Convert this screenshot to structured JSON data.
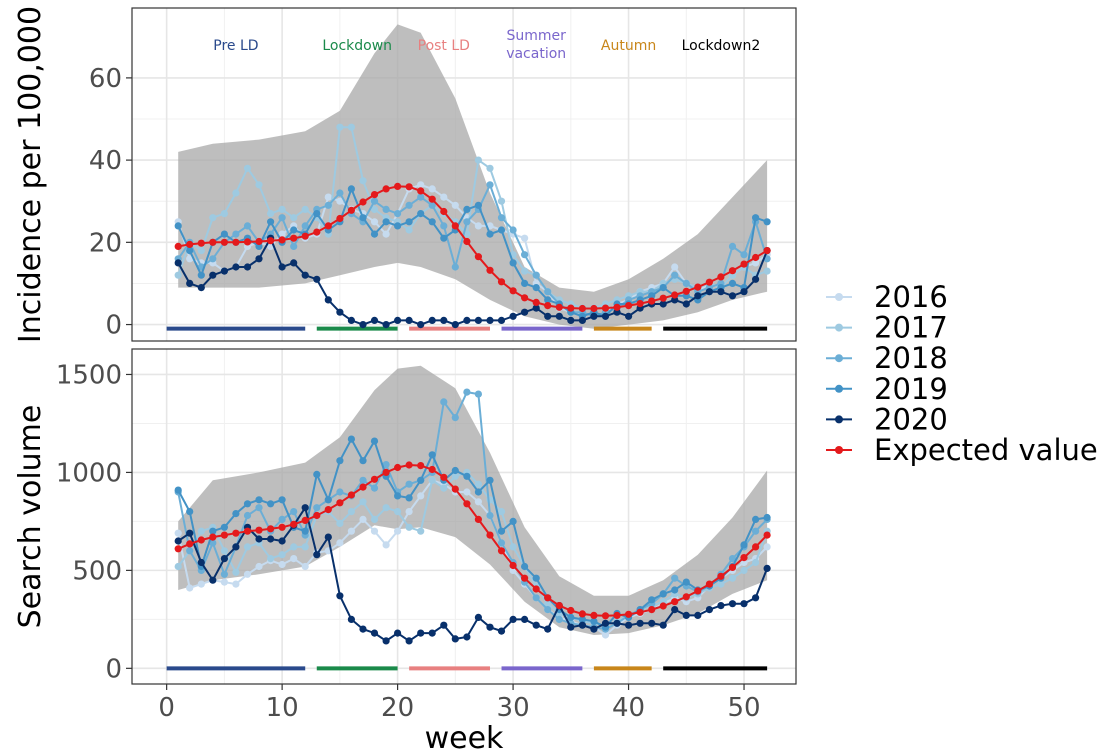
{
  "chart_data": {
    "type": "line",
    "xlabel": "week",
    "xlim": [
      -3,
      54.5
    ],
    "xticks": [
      0,
      10,
      20,
      30,
      40,
      50
    ],
    "legend": {
      "placement": "right",
      "entries": [
        {
          "label": "2016",
          "color": "#c6dbef"
        },
        {
          "label": "2017",
          "color": "#9ecae1"
        },
        {
          "label": "2018",
          "color": "#6baed6"
        },
        {
          "label": "2019",
          "color": "#4292c6"
        },
        {
          "label": "2020",
          "color": "#08306b"
        },
        {
          "label": "Expected value",
          "color": "#e41a1c"
        }
      ]
    },
    "periods": [
      {
        "label": "Pre LD",
        "start": 0,
        "end": 12,
        "color": "#2a4a8c",
        "label_x": 6
      },
      {
        "label": "Lockdown",
        "start": 13,
        "end": 20,
        "color": "#1a8a4a",
        "label_x": 16.5
      },
      {
        "label": "Post LD",
        "start": 21,
        "end": 28,
        "color": "#e88080",
        "label_x": 24
      },
      {
        "label": "Summer\nvacation",
        "start": 29,
        "end": 36,
        "color": "#7a66cc",
        "label_x": 32
      },
      {
        "label": "Autumn",
        "start": 37,
        "end": 42,
        "color": "#c8861a",
        "label_x": 40
      },
      {
        "label": "Lockdown2",
        "start": 43,
        "end": 52,
        "color": "#000000",
        "label_x": 48
      }
    ],
    "panels": [
      {
        "ylabel": "Incidence per 100,000",
        "ylim": [
          -4,
          77
        ],
        "yticks": [
          0,
          20,
          40,
          60
        ],
        "band_y": -1,
        "ribbon": {
          "x": [
            1,
            4,
            8,
            12,
            15,
            18,
            20,
            22,
            25,
            28,
            31,
            34,
            37,
            40,
            43,
            46,
            49,
            52
          ],
          "upper": [
            42,
            44,
            45,
            47,
            52,
            66,
            73,
            71,
            55,
            32,
            14,
            9,
            8,
            11,
            16,
            22,
            31,
            40
          ],
          "lower": [
            9,
            9,
            9,
            10,
            12,
            14,
            15,
            14,
            11,
            6,
            2,
            0,
            -1,
            0,
            1,
            3,
            6,
            8
          ]
        },
        "series": [
          {
            "name": "2016",
            "values": [
              25,
              16,
              15,
              15,
              13,
              14,
              19,
              20,
              19,
              22,
              24,
              21,
              22,
              31,
              30,
              28,
              27,
              25,
              22,
              27,
              33,
              34,
              33,
              31,
              29,
              26,
              24,
              24,
              23,
              22,
              21,
              10,
              8,
              4,
              3,
              3,
              2,
              3,
              5,
              6,
              8,
              9,
              10,
              14,
              10,
              8,
              10,
              9,
              12,
              14,
              15,
              17
            ]
          },
          {
            "name": "2017",
            "values": [
              12,
              20,
              18,
              26,
              27,
              32,
              38,
              34,
              27,
              28,
              26,
              28,
              26,
              22,
              48,
              48,
              35,
              28,
              26,
              25,
              23,
              27,
              29,
              27,
              25,
              22,
              40,
              38,
              30,
              17,
              13,
              12,
              8,
              6,
              5,
              4,
              4,
              5,
              6,
              7,
              8,
              8,
              10,
              11,
              10,
              9,
              10,
              9,
              12,
              14,
              12,
              13
            ]
          },
          {
            "name": "2018",
            "values": [
              16,
              20,
              14,
              16,
              20,
              22,
              24,
              20,
              22,
              26,
              19,
              24,
              28,
              29,
              32,
              27,
              25,
              30,
              28,
              27,
              29,
              31,
              29,
              24,
              14,
              25,
              28,
              34,
              26,
              23,
              17,
              12,
              8,
              5,
              3,
              3,
              2,
              3,
              4,
              6,
              7,
              8,
              9,
              12,
              10,
              8,
              9,
              10,
              19,
              17,
              25,
              16
            ]
          },
          {
            "name": "2019",
            "values": [
              24,
              18,
              12,
              20,
              22,
              20,
              21,
              19,
              25,
              20,
              23,
              22,
              27,
              23,
              25,
              33,
              26,
              22,
              25,
              24,
              25,
              27,
              25,
              21,
              23,
              28,
              29,
              22,
              23,
              15,
              10,
              9,
              6,
              5,
              3,
              2,
              3,
              2,
              5,
              5,
              6,
              7,
              9,
              7,
              7,
              6,
              8,
              9,
              10,
              9,
              26,
              25
            ]
          },
          {
            "name": "2020",
            "values": [
              15,
              10,
              9,
              12,
              13,
              14,
              14,
              16,
              21,
              14,
              15,
              12,
              11,
              6,
              3,
              1,
              0,
              1,
              0,
              1,
              1,
              0,
              1,
              1,
              0,
              1,
              1,
              1,
              1,
              2,
              3,
              4,
              2,
              2,
              1,
              1,
              2,
              2,
              3,
              2,
              4,
              5,
              5,
              6,
              5,
              7,
              8,
              8,
              7,
              8,
              11,
              18
            ]
          },
          {
            "name": "Expected value",
            "values": [
              19,
              19.5,
              19.8,
              20,
              20,
              20,
              20.1,
              20.2,
              20.4,
              20.6,
              21,
              21.5,
              22.5,
              24,
              25.8,
              27.8,
              29.8,
              31.6,
              33,
              33.6,
              33.5,
              32.5,
              30.5,
              27.5,
              24,
              20.2,
              16.5,
              13.2,
              10.4,
              8.2,
              6.5,
              5.4,
              4.6,
              4.2,
              4,
              3.9,
              3.9,
              4,
              4.2,
              4.6,
              5.1,
              5.7,
              6.4,
              7.2,
              8.1,
              9.1,
              10.3,
              11.6,
              13.1,
              14.7,
              16.3,
              18
            ]
          }
        ]
      },
      {
        "ylabel": "Search volume",
        "ylim": [
          -80,
          1630
        ],
        "yticks": [
          0,
          500,
          1000,
          1500
        ],
        "band_y": 0,
        "ribbon": {
          "x": [
            1,
            4,
            8,
            12,
            15,
            18,
            20,
            22,
            25,
            28,
            31,
            34,
            37,
            40,
            43,
            46,
            49,
            52
          ],
          "upper": [
            750,
            960,
            1000,
            1050,
            1180,
            1420,
            1530,
            1545,
            1430,
            1100,
            720,
            470,
            370,
            370,
            450,
            580,
            770,
            1010
          ],
          "lower": [
            400,
            450,
            480,
            520,
            620,
            730,
            710,
            720,
            670,
            530,
            340,
            210,
            170,
            180,
            220,
            280,
            380,
            450
          ]
        },
        "series": [
          {
            "name": "2016",
            "values": [
              690,
              410,
              430,
              450,
              440,
              430,
              480,
              520,
              550,
              530,
              560,
              520,
              590,
              600,
              640,
              700,
              760,
              700,
              630,
              700,
              800,
              880,
              960,
              940,
              900,
              900,
              850,
              780,
              640,
              500,
              430,
              360,
              300,
              260,
              240,
              220,
              210,
              170,
              220,
              260,
              280,
              300,
              330,
              360,
              340,
              360,
              420,
              460,
              500,
              540,
              560,
              620
            ]
          },
          {
            "name": "2017",
            "values": [
              520,
              600,
              700,
              720,
              600,
              490,
              620,
              640,
              560,
              580,
              620,
              620,
              780,
              800,
              740,
              800,
              850,
              760,
              820,
              800,
              720,
              700,
              960,
              920,
              980,
              1000,
              940,
              860,
              800,
              620,
              520,
              420,
              330,
              280,
              260,
              240,
              230,
              220,
              240,
              270,
              300,
              320,
              340,
              380,
              360,
              380,
              410,
              430,
              460,
              500,
              540,
              700
            ]
          },
          {
            "name": "2018",
            "values": [
              900,
              600,
              500,
              640,
              480,
              620,
              780,
              820,
              700,
              760,
              800,
              680,
              820,
              860,
              900,
              880,
              960,
              920,
              1040,
              900,
              940,
              960,
              1000,
              1360,
              1280,
              1410,
              1400,
              780,
              640,
              540,
              440,
              360,
              300,
              250,
              230,
              220,
              210,
              200,
              230,
              270,
              300,
              330,
              380,
              460,
              420,
              390,
              420,
              480,
              560,
              620,
              700,
              760
            ]
          },
          {
            "name": "2019",
            "values": [
              910,
              800,
              520,
              700,
              720,
              790,
              840,
              860,
              840,
              860,
              720,
              700,
              990,
              860,
              1060,
              1170,
              1060,
              1160,
              980,
              880,
              870,
              960,
              1090,
              960,
              1010,
              980,
              900,
              960,
              700,
              750,
              520,
              460,
              360,
              300,
              260,
              250,
              240,
              210,
              280,
              260,
              300,
              350,
              380,
              400,
              440,
              400,
              420,
              460,
              520,
              630,
              760,
              770
            ]
          },
          {
            "name": "2020",
            "values": [
              650,
              690,
              540,
              450,
              560,
              620,
              720,
              660,
              660,
              650,
              730,
              820,
              580,
              670,
              370,
              250,
              200,
              180,
              140,
              180,
              140,
              180,
              180,
              220,
              150,
              160,
              260,
              210,
              190,
              250,
              250,
              220,
              200,
              320,
              210,
              220,
              200,
              230,
              230,
              220,
              230,
              230,
              220,
              300,
              270,
              270,
              300,
              320,
              330,
              330,
              360,
              510
            ]
          },
          {
            "name": "Expected value",
            "values": [
              610,
              635,
              655,
              670,
              680,
              690,
              700,
              705,
              712,
              720,
              735,
              755,
              780,
              810,
              845,
              885,
              925,
              965,
              1000,
              1025,
              1038,
              1035,
              1015,
              975,
              915,
              840,
              760,
              680,
              600,
              525,
              460,
              405,
              360,
              320,
              295,
              278,
              270,
              268,
              270,
              276,
              286,
              300,
              318,
              340,
              365,
              395,
              430,
              470,
              515,
              565,
              620,
              680
            ]
          }
        ]
      }
    ]
  }
}
